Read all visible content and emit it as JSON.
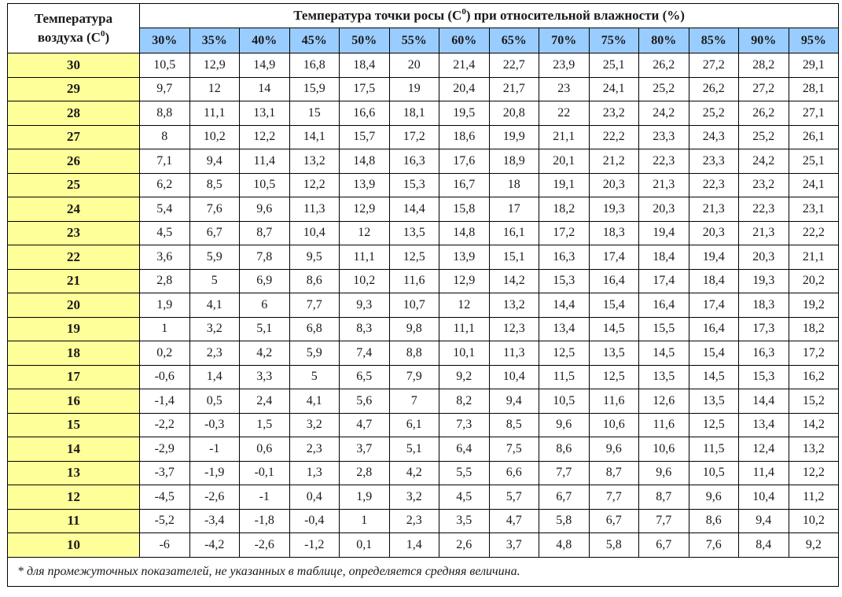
{
  "header": {
    "corner_line1": "Температура",
    "corner_line2": "воздуха (С",
    "corner_sup": "0",
    "corner_close": ")",
    "title_prefix": "Температура точки росы (С",
    "title_sup": "0",
    "title_suffix": ") при относительной влажности (%)",
    "humidity": [
      "30%",
      "35%",
      "40%",
      "45%",
      "50%",
      "55%",
      "60%",
      "65%",
      "70%",
      "75%",
      "80%",
      "85%",
      "90%",
      "95%"
    ]
  },
  "rows": [
    {
      "t": "30",
      "v": [
        "10,5",
        "12,9",
        "14,9",
        "16,8",
        "18,4",
        "20",
        "21,4",
        "22,7",
        "23,9",
        "25,1",
        "26,2",
        "27,2",
        "28,2",
        "29,1"
      ]
    },
    {
      "t": "29",
      "v": [
        "9,7",
        "12",
        "14",
        "15,9",
        "17,5",
        "19",
        "20,4",
        "21,7",
        "23",
        "24,1",
        "25,2",
        "26,2",
        "27,2",
        "28,1"
      ]
    },
    {
      "t": "28",
      "v": [
        "8,8",
        "11,1",
        "13,1",
        "15",
        "16,6",
        "18,1",
        "19,5",
        "20,8",
        "22",
        "23,2",
        "24,2",
        "25,2",
        "26,2",
        "27,1"
      ]
    },
    {
      "t": "27",
      "v": [
        "8",
        "10,2",
        "12,2",
        "14,1",
        "15,7",
        "17,2",
        "18,6",
        "19,9",
        "21,1",
        "22,2",
        "23,3",
        "24,3",
        "25,2",
        "26,1"
      ]
    },
    {
      "t": "26",
      "v": [
        "7,1",
        "9,4",
        "11,4",
        "13,2",
        "14,8",
        "16,3",
        "17,6",
        "18,9",
        "20,1",
        "21,2",
        "22,3",
        "23,3",
        "24,2",
        "25,1"
      ]
    },
    {
      "t": "25",
      "v": [
        "6,2",
        "8,5",
        "10,5",
        "12,2",
        "13,9",
        "15,3",
        "16,7",
        "18",
        "19,1",
        "20,3",
        "21,3",
        "22,3",
        "23,2",
        "24,1"
      ]
    },
    {
      "t": "24",
      "v": [
        "5,4",
        "7,6",
        "9,6",
        "11,3",
        "12,9",
        "14,4",
        "15,8",
        "17",
        "18,2",
        "19,3",
        "20,3",
        "21,3",
        "22,3",
        "23,1"
      ]
    },
    {
      "t": "23",
      "v": [
        "4,5",
        "6,7",
        "8,7",
        "10,4",
        "12",
        "13,5",
        "14,8",
        "16,1",
        "17,2",
        "18,3",
        "19,4",
        "20,3",
        "21,3",
        "22,2"
      ]
    },
    {
      "t": "22",
      "v": [
        "3,6",
        "5,9",
        "7,8",
        "9,5",
        "11,1",
        "12,5",
        "13,9",
        "15,1",
        "16,3",
        "17,4",
        "18,4",
        "19,4",
        "20,3",
        "21,1"
      ]
    },
    {
      "t": "21",
      "v": [
        "2,8",
        "5",
        "6,9",
        "8,6",
        "10,2",
        "11,6",
        "12,9",
        "14,2",
        "15,3",
        "16,4",
        "17,4",
        "18,4",
        "19,3",
        "20,2"
      ]
    },
    {
      "t": "20",
      "v": [
        "1,9",
        "4,1",
        "6",
        "7,7",
        "9,3",
        "10,7",
        "12",
        "13,2",
        "14,4",
        "15,4",
        "16,4",
        "17,4",
        "18,3",
        "19,2"
      ]
    },
    {
      "t": "19",
      "v": [
        "1",
        "3,2",
        "5,1",
        "6,8",
        "8,3",
        "9,8",
        "11,1",
        "12,3",
        "13,4",
        "14,5",
        "15,5",
        "16,4",
        "17,3",
        "18,2"
      ]
    },
    {
      "t": "18",
      "v": [
        "0,2",
        "2,3",
        "4,2",
        "5,9",
        "7,4",
        "8,8",
        "10,1",
        "11,3",
        "12,5",
        "13,5",
        "14,5",
        "15,4",
        "16,3",
        "17,2"
      ]
    },
    {
      "t": "17",
      "v": [
        "-0,6",
        "1,4",
        "3,3",
        "5",
        "6,5",
        "7,9",
        "9,2",
        "10,4",
        "11,5",
        "12,5",
        "13,5",
        "14,5",
        "15,3",
        "16,2"
      ]
    },
    {
      "t": "16",
      "v": [
        "-1,4",
        "0,5",
        "2,4",
        "4,1",
        "5,6",
        "7",
        "8,2",
        "9,4",
        "10,5",
        "11,6",
        "12,6",
        "13,5",
        "14,4",
        "15,2"
      ]
    },
    {
      "t": "15",
      "v": [
        "-2,2",
        "-0,3",
        "1,5",
        "3,2",
        "4,7",
        "6,1",
        "7,3",
        "8,5",
        "9,6",
        "10,6",
        "11,6",
        "12,5",
        "13,4",
        "14,2"
      ]
    },
    {
      "t": "14",
      "v": [
        "-2,9",
        "-1",
        "0,6",
        "2,3",
        "3,7",
        "5,1",
        "6,4",
        "7,5",
        "8,6",
        "9,6",
        "10,6",
        "11,5",
        "12,4",
        "13,2"
      ]
    },
    {
      "t": "13",
      "v": [
        "-3,7",
        "-1,9",
        "-0,1",
        "1,3",
        "2,8",
        "4,2",
        "5,5",
        "6,6",
        "7,7",
        "8,7",
        "9,6",
        "10,5",
        "11,4",
        "12,2"
      ]
    },
    {
      "t": "12",
      "v": [
        "-4,5",
        "-2,6",
        "-1",
        "0,4",
        "1,9",
        "3,2",
        "4,5",
        "5,7",
        "6,7",
        "7,7",
        "8,7",
        "9,6",
        "10,4",
        "11,2"
      ]
    },
    {
      "t": "11",
      "v": [
        "-5,2",
        "-3,4",
        "-1,8",
        "-0,4",
        "1",
        "2,3",
        "3,5",
        "4,7",
        "5,8",
        "6,7",
        "7,7",
        "8,6",
        "9,4",
        "10,2"
      ]
    },
    {
      "t": "10",
      "v": [
        "-6",
        "-4,2",
        "-2,6",
        "-1,2",
        "0,1",
        "1,4",
        "2,6",
        "3,7",
        "4,8",
        "5,8",
        "6,7",
        "7,6",
        "8,4",
        "9,2"
      ]
    }
  ],
  "footnote": "* для промежуточных показателей, не указанных в таблице, определяется средняя величина.",
  "colors": {
    "temp_column_bg": "#ffff99",
    "humidity_header_bg": "#99ccff",
    "border": "#000000"
  }
}
